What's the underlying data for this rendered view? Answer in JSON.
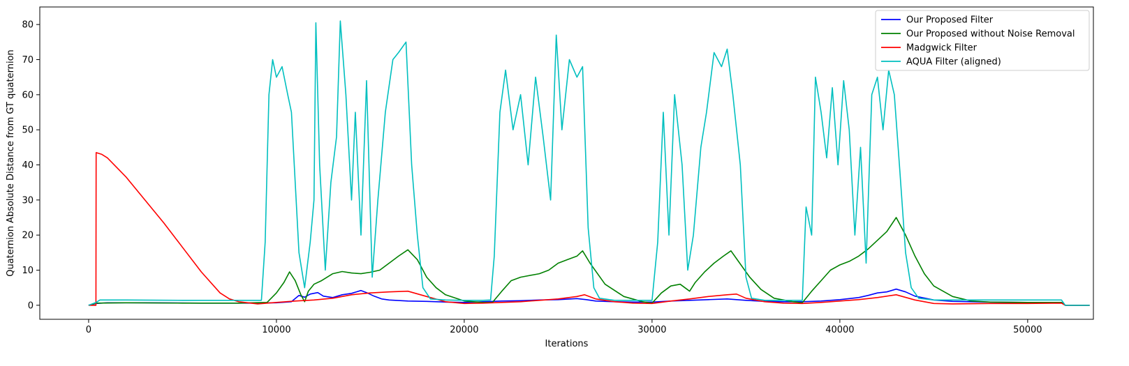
{
  "chart_data": {
    "type": "line",
    "title": "",
    "xlabel": "Iterations",
    "ylabel": "Quaternion Absolute Distance from GT quaternion",
    "xlim": [
      -2600,
      53500
    ],
    "ylim": [
      -4,
      85
    ],
    "xticks": [
      0,
      10000,
      20000,
      30000,
      40000,
      50000
    ],
    "xtick_labels": [
      "0",
      "10000",
      "20000",
      "30000",
      "40000",
      "50000"
    ],
    "yticks": [
      0,
      10,
      20,
      30,
      40,
      50,
      60,
      70,
      80
    ],
    "ytick_labels": [
      "0",
      "10",
      "20",
      "30",
      "40",
      "50",
      "60",
      "70",
      "80"
    ],
    "grid": false,
    "legend_position": "top-right",
    "series": [
      {
        "name": "Our Proposed Filter",
        "color": "#0000ff",
        "points": [
          [
            0,
            0
          ],
          [
            400,
            0.5
          ],
          [
            1000,
            0.7
          ],
          [
            3000,
            0.7
          ],
          [
            6000,
            0.6
          ],
          [
            9000,
            0.6
          ],
          [
            10000,
            0.7
          ],
          [
            10800,
            1.0
          ],
          [
            11200,
            2.8
          ],
          [
            11500,
            2.3
          ],
          [
            11800,
            3.2
          ],
          [
            12200,
            3.6
          ],
          [
            12500,
            2.6
          ],
          [
            13000,
            2.2
          ],
          [
            13500,
            3.0
          ],
          [
            14000,
            3.4
          ],
          [
            14500,
            4.2
          ],
          [
            14800,
            3.6
          ],
          [
            15200,
            2.6
          ],
          [
            15600,
            1.8
          ],
          [
            16000,
            1.5
          ],
          [
            17000,
            1.2
          ],
          [
            18000,
            1.1
          ],
          [
            19000,
            0.9
          ],
          [
            20000,
            0.8
          ],
          [
            21000,
            1.0
          ],
          [
            22000,
            1.2
          ],
          [
            23000,
            1.3
          ],
          [
            24000,
            1.5
          ],
          [
            25000,
            1.6
          ],
          [
            26000,
            1.9
          ],
          [
            26500,
            1.6
          ],
          [
            27000,
            1.2
          ],
          [
            28000,
            1.0
          ],
          [
            29000,
            0.9
          ],
          [
            30000,
            0.9
          ],
          [
            31000,
            1.2
          ],
          [
            32000,
            1.4
          ],
          [
            33000,
            1.6
          ],
          [
            34000,
            1.8
          ],
          [
            35000,
            1.4
          ],
          [
            36000,
            1.1
          ],
          [
            37000,
            1.0
          ],
          [
            38000,
            1.0
          ],
          [
            39000,
            1.2
          ],
          [
            40000,
            1.6
          ],
          [
            41000,
            2.2
          ],
          [
            41500,
            2.8
          ],
          [
            42000,
            3.5
          ],
          [
            42500,
            3.8
          ],
          [
            43000,
            4.6
          ],
          [
            43500,
            3.8
          ],
          [
            44000,
            2.6
          ],
          [
            45000,
            1.5
          ],
          [
            46000,
            1.1
          ],
          [
            48000,
            0.9
          ],
          [
            50000,
            0.8
          ],
          [
            51800,
            0.8
          ],
          [
            52000,
            0
          ],
          [
            53300,
            0
          ]
        ]
      },
      {
        "name": "Our Proposed without Noise Removal",
        "color": "#008000",
        "points": [
          [
            0,
            0
          ],
          [
            400,
            0.6
          ],
          [
            2000,
            0.7
          ],
          [
            5000,
            0.6
          ],
          [
            8000,
            0.6
          ],
          [
            9500,
            0.8
          ],
          [
            10000,
            3.5
          ],
          [
            10400,
            6.5
          ],
          [
            10700,
            9.5
          ],
          [
            11000,
            7.0
          ],
          [
            11300,
            3.0
          ],
          [
            11500,
            1.0
          ],
          [
            11700,
            4.0
          ],
          [
            12000,
            6.0
          ],
          [
            12400,
            7.0
          ],
          [
            13000,
            9.0
          ],
          [
            13500,
            9.6
          ],
          [
            14000,
            9.2
          ],
          [
            14500,
            9.0
          ],
          [
            15000,
            9.4
          ],
          [
            15500,
            10.0
          ],
          [
            16000,
            12.0
          ],
          [
            16500,
            14.0
          ],
          [
            17000,
            15.8
          ],
          [
            17500,
            13.0
          ],
          [
            18000,
            8.0
          ],
          [
            18500,
            5.0
          ],
          [
            19000,
            3.0
          ],
          [
            20000,
            1.2
          ],
          [
            21000,
            0.8
          ],
          [
            21500,
            0.8
          ],
          [
            22000,
            4.0
          ],
          [
            22500,
            7.0
          ],
          [
            23000,
            8.0
          ],
          [
            24000,
            9.0
          ],
          [
            24500,
            10.0
          ],
          [
            25000,
            12.0
          ],
          [
            25500,
            13.0
          ],
          [
            26000,
            14.0
          ],
          [
            26300,
            15.5
          ],
          [
            26700,
            12.0
          ],
          [
            27500,
            6.0
          ],
          [
            28500,
            2.5
          ],
          [
            29500,
            1.0
          ],
          [
            30000,
            0.6
          ],
          [
            30500,
            3.5
          ],
          [
            31000,
            5.5
          ],
          [
            31500,
            6.0
          ],
          [
            32000,
            4.0
          ],
          [
            32300,
            6.5
          ],
          [
            32800,
            9.5
          ],
          [
            33300,
            12.0
          ],
          [
            33800,
            14.0
          ],
          [
            34200,
            15.5
          ],
          [
            34600,
            12.5
          ],
          [
            35200,
            8.0
          ],
          [
            35800,
            4.5
          ],
          [
            36500,
            2.0
          ],
          [
            37500,
            1.0
          ],
          [
            38000,
            0.7
          ],
          [
            38500,
            4.0
          ],
          [
            39000,
            7.0
          ],
          [
            39500,
            10.0
          ],
          [
            40000,
            11.5
          ],
          [
            40500,
            12.5
          ],
          [
            41000,
            14.0
          ],
          [
            41500,
            16.0
          ],
          [
            42000,
            18.5
          ],
          [
            42500,
            21.0
          ],
          [
            43000,
            25.0
          ],
          [
            43500,
            20.0
          ],
          [
            44000,
            14.0
          ],
          [
            44500,
            9.0
          ],
          [
            45000,
            5.5
          ],
          [
            46000,
            2.5
          ],
          [
            47000,
            1.2
          ],
          [
            48000,
            0.9
          ],
          [
            50000,
            0.8
          ],
          [
            51800,
            0.8
          ],
          [
            52000,
            0
          ],
          [
            53300,
            0
          ]
        ]
      },
      {
        "name": "Madgwick Filter",
        "color": "#ff0000",
        "points": [
          [
            0,
            0
          ],
          [
            390,
            0
          ],
          [
            400,
            43.5
          ],
          [
            700,
            43.0
          ],
          [
            1000,
            42.0
          ],
          [
            2000,
            36.5
          ],
          [
            3000,
            30.0
          ],
          [
            4000,
            23.5
          ],
          [
            5000,
            16.5
          ],
          [
            6000,
            9.5
          ],
          [
            7000,
            3.5
          ],
          [
            7500,
            1.8
          ],
          [
            8000,
            1.0
          ],
          [
            9000,
            0.4
          ],
          [
            10000,
            0.8
          ],
          [
            11000,
            1.2
          ],
          [
            12000,
            1.5
          ],
          [
            13000,
            2.0
          ],
          [
            14000,
            3.0
          ],
          [
            15000,
            3.5
          ],
          [
            16000,
            3.8
          ],
          [
            17000,
            4.0
          ],
          [
            18000,
            2.5
          ],
          [
            19000,
            1.0
          ],
          [
            20000,
            0.5
          ],
          [
            21000,
            0.6
          ],
          [
            22000,
            0.8
          ],
          [
            23000,
            1.0
          ],
          [
            24000,
            1.4
          ],
          [
            25000,
            1.8
          ],
          [
            26000,
            2.5
          ],
          [
            26400,
            3.0
          ],
          [
            27000,
            1.8
          ],
          [
            28000,
            1.0
          ],
          [
            29000,
            0.6
          ],
          [
            30000,
            0.5
          ],
          [
            31000,
            1.2
          ],
          [
            32000,
            1.8
          ],
          [
            33000,
            2.5
          ],
          [
            34000,
            3.0
          ],
          [
            34500,
            3.2
          ],
          [
            35000,
            2.0
          ],
          [
            36000,
            1.0
          ],
          [
            37000,
            0.6
          ],
          [
            38000,
            0.5
          ],
          [
            39000,
            0.8
          ],
          [
            40000,
            1.2
          ],
          [
            41000,
            1.6
          ],
          [
            42000,
            2.2
          ],
          [
            43000,
            3.0
          ],
          [
            44000,
            1.5
          ],
          [
            45000,
            0.5
          ],
          [
            46000,
            0.4
          ],
          [
            48000,
            0.5
          ],
          [
            50000,
            0.5
          ],
          [
            51800,
            0.6
          ],
          [
            52000,
            0
          ],
          [
            53300,
            0
          ]
        ]
      },
      {
        "name": "AQUA Filter (aligned)",
        "color": "#00bfbf",
        "points": [
          [
            0,
            0
          ],
          [
            400,
            0.8
          ],
          [
            600,
            1.5
          ],
          [
            2000,
            1.5
          ],
          [
            5000,
            1.4
          ],
          [
            8000,
            1.4
          ],
          [
            9200,
            1.4
          ],
          [
            9400,
            18.0
          ],
          [
            9600,
            60.0
          ],
          [
            9800,
            70.0
          ],
          [
            10000,
            65.0
          ],
          [
            10300,
            68.0
          ],
          [
            10600,
            60.0
          ],
          [
            10800,
            55.0
          ],
          [
            11000,
            35.0
          ],
          [
            11200,
            15.0
          ],
          [
            11500,
            5.0
          ],
          [
            11800,
            18.0
          ],
          [
            12000,
            30.0
          ],
          [
            12100,
            80.5
          ],
          [
            12300,
            40.0
          ],
          [
            12600,
            10.0
          ],
          [
            12900,
            35.0
          ],
          [
            13200,
            48.0
          ],
          [
            13400,
            81.0
          ],
          [
            13700,
            60.0
          ],
          [
            14000,
            30.0
          ],
          [
            14200,
            55.0
          ],
          [
            14500,
            20.0
          ],
          [
            14800,
            64.0
          ],
          [
            15100,
            8.0
          ],
          [
            15400,
            30.0
          ],
          [
            15800,
            55.0
          ],
          [
            16200,
            70.0
          ],
          [
            16500,
            72.0
          ],
          [
            16900,
            75.0
          ],
          [
            17200,
            40.0
          ],
          [
            17500,
            20.0
          ],
          [
            17800,
            5.0
          ],
          [
            18200,
            1.8
          ],
          [
            19000,
            1.5
          ],
          [
            20000,
            1.4
          ],
          [
            21000,
            1.4
          ],
          [
            21400,
            1.5
          ],
          [
            21600,
            14.0
          ],
          [
            21900,
            55.0
          ],
          [
            22200,
            67.0
          ],
          [
            22600,
            50.0
          ],
          [
            23000,
            60.0
          ],
          [
            23400,
            40.0
          ],
          [
            23800,
            65.0
          ],
          [
            24200,
            48.0
          ],
          [
            24600,
            30.0
          ],
          [
            24900,
            77.0
          ],
          [
            25200,
            50.0
          ],
          [
            25600,
            70.0
          ],
          [
            26000,
            65.0
          ],
          [
            26300,
            68.0
          ],
          [
            26600,
            22.0
          ],
          [
            26900,
            5.0
          ],
          [
            27200,
            2.0
          ],
          [
            28000,
            1.4
          ],
          [
            29000,
            1.4
          ],
          [
            30000,
            1.4
          ],
          [
            30300,
            18.0
          ],
          [
            30600,
            55.0
          ],
          [
            30900,
            20.0
          ],
          [
            31200,
            60.0
          ],
          [
            31600,
            40.0
          ],
          [
            31900,
            10.0
          ],
          [
            32200,
            20.0
          ],
          [
            32600,
            45.0
          ],
          [
            32900,
            55.0
          ],
          [
            33300,
            72.0
          ],
          [
            33700,
            68.0
          ],
          [
            34000,
            73.0
          ],
          [
            34300,
            60.0
          ],
          [
            34700,
            40.0
          ],
          [
            35000,
            8.0
          ],
          [
            35300,
            2.0
          ],
          [
            36000,
            1.4
          ],
          [
            37000,
            1.4
          ],
          [
            38000,
            1.4
          ],
          [
            38200,
            28.0
          ],
          [
            38500,
            20.0
          ],
          [
            38700,
            65.0
          ],
          [
            39000,
            55.0
          ],
          [
            39300,
            42.0
          ],
          [
            39600,
            62.0
          ],
          [
            39900,
            40.0
          ],
          [
            40200,
            64.0
          ],
          [
            40500,
            50.0
          ],
          [
            40800,
            20.0
          ],
          [
            41100,
            45.0
          ],
          [
            41400,
            12.0
          ],
          [
            41700,
            60.0
          ],
          [
            42000,
            65.0
          ],
          [
            42300,
            50.0
          ],
          [
            42600,
            67.0
          ],
          [
            42900,
            60.0
          ],
          [
            43200,
            38.0
          ],
          [
            43500,
            15.0
          ],
          [
            43800,
            5.0
          ],
          [
            44200,
            2.0
          ],
          [
            45000,
            1.5
          ],
          [
            47000,
            1.5
          ],
          [
            50000,
            1.5
          ],
          [
            51800,
            1.5
          ],
          [
            52000,
            0
          ],
          [
            53300,
            0
          ]
        ]
      }
    ]
  }
}
